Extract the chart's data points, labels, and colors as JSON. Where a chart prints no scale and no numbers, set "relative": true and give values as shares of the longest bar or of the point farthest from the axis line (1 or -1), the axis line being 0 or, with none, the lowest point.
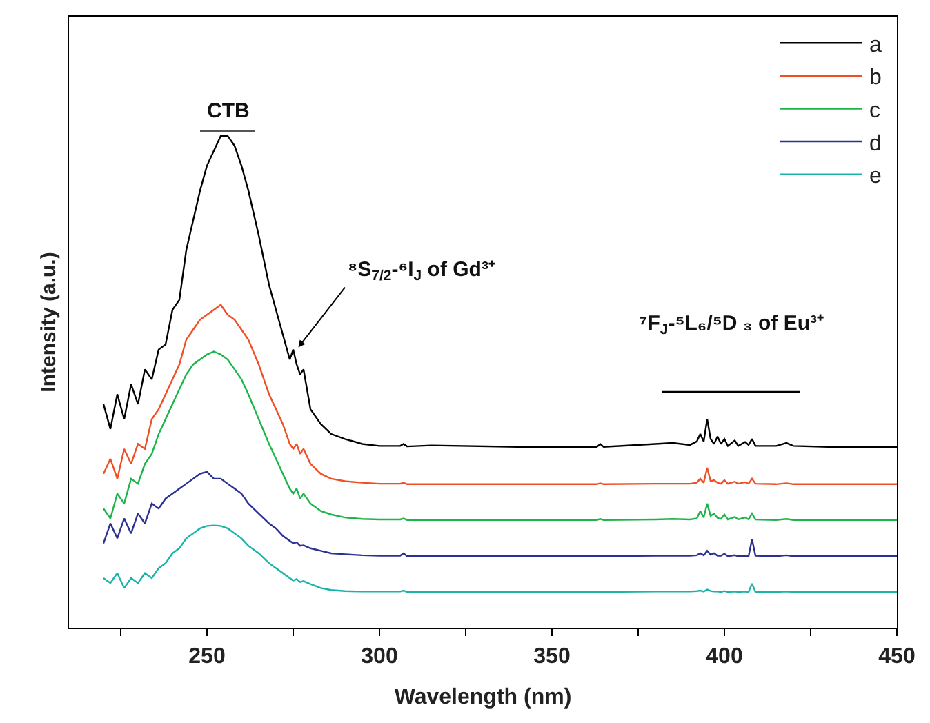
{
  "chart_data": {
    "type": "line",
    "xlabel": "Wavelength (nm)",
    "ylabel": "Intensity (a.u.)",
    "relative": true,
    "xlim": [
      210,
      450
    ],
    "xticks": [
      {
        "value": 225,
        "label": null
      },
      250,
      {
        "value": 275,
        "label": null
      },
      300,
      {
        "value": 325,
        "label": null
      },
      350,
      {
        "value": 375,
        "label": null
      },
      400,
      {
        "value": 425,
        "label": null
      },
      450
    ],
    "x": [
      220,
      222,
      224,
      226,
      228,
      230,
      232,
      234,
      236,
      238,
      240,
      242,
      244,
      246,
      248,
      250,
      252,
      254,
      256,
      258,
      260,
      262,
      265,
      268,
      270,
      272,
      274,
      275,
      276,
      277,
      278,
      280,
      283,
      286,
      290,
      295,
      300,
      306,
      307,
      308,
      315,
      340,
      363,
      364,
      365,
      380,
      385,
      390,
      392,
      393,
      394,
      395,
      396,
      397,
      398,
      399,
      400,
      401,
      403,
      404,
      406,
      407,
      408,
      409,
      415,
      418,
      420,
      430,
      440,
      450
    ],
    "series": [
      {
        "name": "a",
        "color": "#000000",
        "values": [
          0.45,
          0.4,
          0.47,
          0.42,
          0.49,
          0.45,
          0.52,
          0.5,
          0.56,
          0.57,
          0.64,
          0.66,
          0.76,
          0.82,
          0.88,
          0.93,
          0.96,
          0.99,
          0.99,
          0.97,
          0.93,
          0.88,
          0.79,
          0.69,
          0.64,
          0.59,
          0.54,
          0.56,
          0.53,
          0.51,
          0.52,
          0.44,
          0.41,
          0.39,
          0.38,
          0.37,
          0.366,
          0.366,
          0.37,
          0.365,
          0.367,
          0.364,
          0.364,
          0.37,
          0.364,
          0.37,
          0.372,
          0.368,
          0.375,
          0.39,
          0.375,
          0.42,
          0.38,
          0.37,
          0.385,
          0.37,
          0.38,
          0.366,
          0.377,
          0.366,
          0.374,
          0.368,
          0.38,
          0.366,
          0.366,
          0.372,
          0.366,
          0.364,
          0.364,
          0.364
        ]
      },
      {
        "name": "b",
        "color": "#f04e23",
        "values": [
          0.31,
          0.34,
          0.3,
          0.36,
          0.33,
          0.37,
          0.36,
          0.42,
          0.44,
          0.47,
          0.5,
          0.53,
          0.58,
          0.6,
          0.62,
          0.63,
          0.64,
          0.65,
          0.63,
          0.62,
          0.6,
          0.58,
          0.53,
          0.47,
          0.44,
          0.41,
          0.37,
          0.36,
          0.37,
          0.35,
          0.36,
          0.33,
          0.31,
          0.3,
          0.295,
          0.292,
          0.29,
          0.29,
          0.292,
          0.289,
          0.289,
          0.289,
          0.289,
          0.291,
          0.289,
          0.29,
          0.29,
          0.29,
          0.292,
          0.3,
          0.292,
          0.322,
          0.295,
          0.297,
          0.292,
          0.29,
          0.297,
          0.29,
          0.294,
          0.29,
          0.293,
          0.29,
          0.3,
          0.29,
          0.289,
          0.291,
          0.289,
          0.289,
          0.289,
          0.289
        ]
      },
      {
        "name": "c",
        "color": "#1db44a",
        "values": [
          0.24,
          0.22,
          0.27,
          0.25,
          0.3,
          0.29,
          0.33,
          0.35,
          0.39,
          0.42,
          0.45,
          0.48,
          0.51,
          0.53,
          0.54,
          0.55,
          0.556,
          0.55,
          0.54,
          0.52,
          0.5,
          0.47,
          0.42,
          0.37,
          0.34,
          0.31,
          0.28,
          0.27,
          0.28,
          0.26,
          0.27,
          0.25,
          0.235,
          0.228,
          0.222,
          0.219,
          0.218,
          0.218,
          0.22,
          0.217,
          0.217,
          0.217,
          0.217,
          0.219,
          0.217,
          0.218,
          0.219,
          0.218,
          0.22,
          0.235,
          0.222,
          0.25,
          0.225,
          0.23,
          0.221,
          0.219,
          0.228,
          0.218,
          0.223,
          0.218,
          0.222,
          0.218,
          0.23,
          0.218,
          0.217,
          0.219,
          0.217,
          0.217,
          0.217,
          0.217
        ]
      },
      {
        "name": "d",
        "color": "#2b3190",
        "values": [
          0.17,
          0.21,
          0.18,
          0.22,
          0.19,
          0.23,
          0.21,
          0.25,
          0.24,
          0.26,
          0.27,
          0.28,
          0.29,
          0.3,
          0.31,
          0.314,
          0.3,
          0.3,
          0.29,
          0.28,
          0.27,
          0.25,
          0.23,
          0.21,
          0.2,
          0.185,
          0.175,
          0.17,
          0.172,
          0.165,
          0.166,
          0.16,
          0.155,
          0.15,
          0.148,
          0.146,
          0.145,
          0.145,
          0.15,
          0.144,
          0.144,
          0.144,
          0.144,
          0.145,
          0.144,
          0.145,
          0.145,
          0.145,
          0.146,
          0.15,
          0.146,
          0.155,
          0.147,
          0.15,
          0.145,
          0.145,
          0.149,
          0.144,
          0.146,
          0.144,
          0.145,
          0.144,
          0.178,
          0.145,
          0.144,
          0.146,
          0.144,
          0.144,
          0.144,
          0.144
        ]
      },
      {
        "color": "#555555",
        "x": [
          248,
          264
        ],
        "values": [
          1.0,
          1.0
        ]
      },
      {
        "color": "#000000",
        "x": [
          382,
          422
        ],
        "values": [
          0.475,
          0.475
        ]
      },
      {
        "name": "e",
        "color": "#19b3aa",
        "values": [
          0.1,
          0.09,
          0.11,
          0.08,
          0.1,
          0.09,
          0.11,
          0.1,
          0.12,
          0.13,
          0.15,
          0.16,
          0.18,
          0.19,
          0.2,
          0.205,
          0.206,
          0.205,
          0.2,
          0.19,
          0.18,
          0.165,
          0.15,
          0.13,
          0.12,
          0.11,
          0.1,
          0.095,
          0.098,
          0.092,
          0.094,
          0.088,
          0.08,
          0.076,
          0.074,
          0.073,
          0.073,
          0.073,
          0.075,
          0.072,
          0.072,
          0.072,
          0.072,
          0.072,
          0.072,
          0.073,
          0.073,
          0.073,
          0.074,
          0.075,
          0.073,
          0.077,
          0.074,
          0.073,
          0.073,
          0.072,
          0.074,
          0.072,
          0.073,
          0.072,
          0.073,
          0.072,
          0.089,
          0.072,
          0.072,
          0.073,
          0.072,
          0.072,
          0.072,
          0.072
        ]
      }
    ],
    "annotations": [
      "CTB",
      {
        "text": "⁸S$_{7/2}$-⁶I$_{J}$ of Gd³⁺",
        "x": 276,
        "y": 0.56
      },
      "⁷F$_{J}$-⁵L₆/⁵D ₃ of Eu³⁺"
    ],
    "legend": "top right",
    "marker": "none",
    "line_style": "solid"
  }
}
